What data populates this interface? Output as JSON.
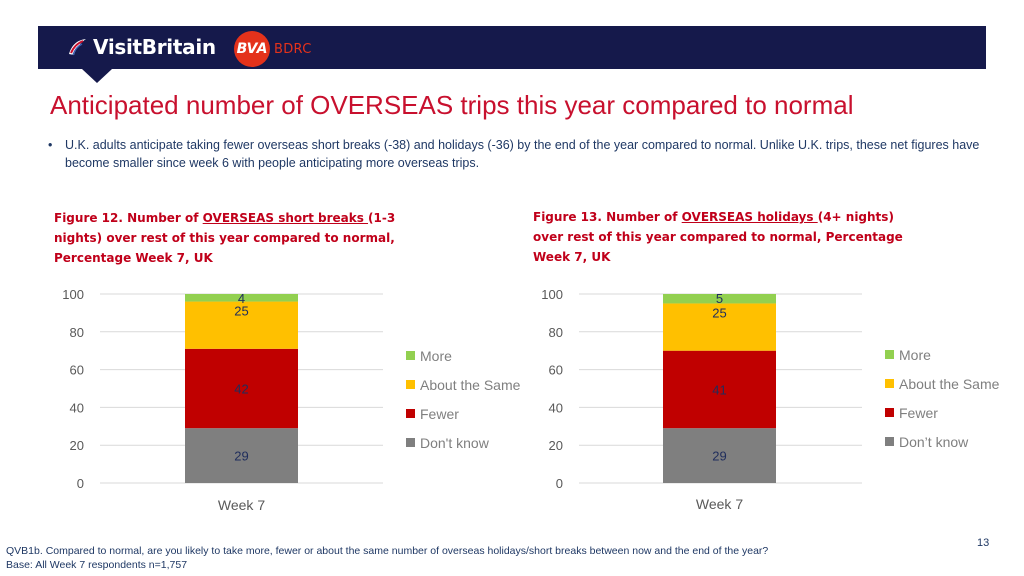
{
  "header": {
    "brand_left": "VisitBritain",
    "brand_right_circle": "BVA",
    "brand_right_text": "BDRC",
    "colors": {
      "bar": "#15194b",
      "bva": "#e4321b"
    }
  },
  "title": "Anticipated number of OVERSEAS trips this year compared to normal",
  "bullet": "U.K. adults anticipate taking fewer overseas short breaks (-38) and holidays (-36) by the end of the year compared to normal. Unlike U.K. trips, these net figures have become smaller since week 6 with people anticipating more overseas trips.",
  "figures": [
    {
      "prefix": "Figure 12. Number of ",
      "underlined": "OVERSEAS short breaks ",
      "suffix": "(1-3 nights) over rest of this year compared to normal, Percentage Week 7, UK"
    },
    {
      "prefix": "Figure 13. Number of ",
      "underlined": "OVERSEAS holidays ",
      "suffix": "(4+ nights) over rest of this year compared to normal, Percentage Week 7, UK"
    }
  ],
  "chart_data": [
    {
      "type": "bar",
      "stacked": true,
      "categories": [
        "Week 7"
      ],
      "ylim": [
        0,
        100
      ],
      "yticks": [
        0,
        20,
        40,
        60,
        80,
        100
      ],
      "series": [
        {
          "name": "Don't know",
          "values": [
            29
          ],
          "color": "#7f7f7f"
        },
        {
          "name": "Fewer",
          "values": [
            42
          ],
          "color": "#c00000"
        },
        {
          "name": "About the Same",
          "values": [
            25
          ],
          "color": "#ffc000"
        },
        {
          "name": "More",
          "values": [
            4
          ],
          "color": "#92d050"
        }
      ],
      "legend_position": "right"
    },
    {
      "type": "bar",
      "stacked": true,
      "categories": [
        "Week 7"
      ],
      "ylim": [
        0,
        100
      ],
      "yticks": [
        0,
        20,
        40,
        60,
        80,
        100
      ],
      "series": [
        {
          "name": "Don’t know",
          "values": [
            29
          ],
          "color": "#7f7f7f"
        },
        {
          "name": "Fewer",
          "values": [
            41
          ],
          "color": "#c00000"
        },
        {
          "name": "About the Same",
          "values": [
            25
          ],
          "color": "#ffc000"
        },
        {
          "name": "More",
          "values": [
            5
          ],
          "color": "#92d050"
        }
      ],
      "legend_position": "right"
    }
  ],
  "page_number": "13",
  "footnote": "QVB1b. Compared to normal, are you likely to take more, fewer or about the same number of overseas holidays/short breaks between now and the end of the year? Base: All Week 7 respondents n=1,757"
}
